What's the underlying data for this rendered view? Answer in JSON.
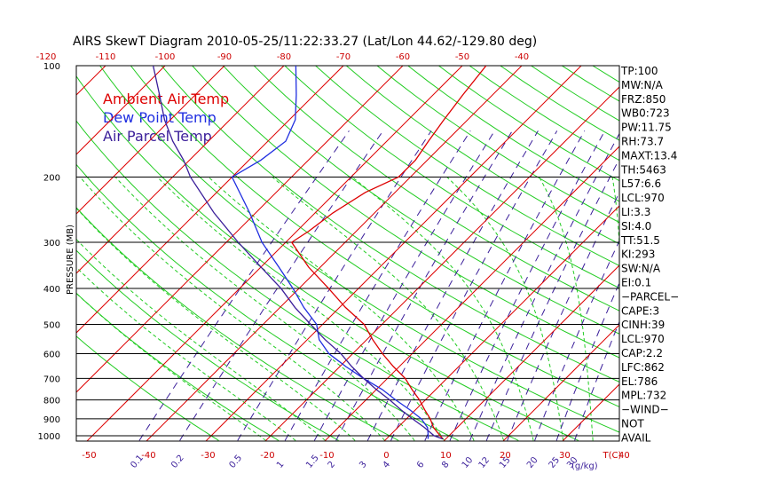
{
  "title": "AIRS SkewT Diagram 2010-05-25/11:22:33.27 (Lat/Lon 44.62/-129.80 deg)",
  "ylabel": "PRESSURE (MB)",
  "legend": [
    {
      "label": "Ambient Air Temp",
      "color": "#dd0000"
    },
    {
      "label": "Dew Point Temp",
      "color": "#1f2ee0"
    },
    {
      "label": "Air Parcel Temp",
      "color": "#3b1f9a"
    }
  ],
  "top_axis": {
    "labels": [
      "-120",
      "-110",
      "-100",
      "-90",
      "-80",
      "-70",
      "-60",
      "-50",
      "-40"
    ]
  },
  "bottom_axis": {
    "labels": [
      "-50",
      "-40",
      "-30",
      "-20",
      "-10",
      "0",
      "10",
      "20",
      "30",
      "40"
    ],
    "unit": "T(C)"
  },
  "mixing_ratio": {
    "labels": [
      "0.1",
      "0.2",
      "0.5",
      "1",
      "1.5",
      "2",
      "3",
      "4",
      "6",
      "8",
      "10",
      "12",
      "15",
      "20",
      "25",
      "30"
    ],
    "unit": "(g/kg)"
  },
  "indices": [
    "TP:100",
    "MW:N/A",
    "FRZ:850",
    "WB0:723",
    "PW:11.75",
    "RH:73.7",
    "MAXT:13.4",
    "TH:5463",
    "L57:6.6",
    "LCL:970",
    "LI:3.3",
    "SI:4.0",
    "TT:51.5",
    "KI:293",
    "SW:N/A",
    "EI:0.1",
    "−PARCEL−",
    "CAPE:3",
    "CINH:39",
    "LCL:970",
    "CAP:2.2",
    "LFC:862",
    "EL:786",
    "MPL:732",
    "−WIND−",
    "NOT",
    "AVAIL"
  ],
  "colors": {
    "isotherm": "#dd0000",
    "dry_adiabat": "#22cc22",
    "moist_adiabat": "#22cc22",
    "mixing_ratio": "#3b1f9a",
    "isobar": "#000000",
    "text": "#000000",
    "tick_text": "#cc0000",
    "mixing_text": "#3b1f9a"
  },
  "chart_data": {
    "type": "line",
    "title": "AIRS SkewT Diagram 2010-05-25/11:22:33.27 (Lat/Lon 44.62/-129.80 deg)",
    "ylabel": "PRESSURE (MB)",
    "pressure_levels": [
      100,
      200,
      300,
      400,
      500,
      600,
      700,
      800,
      900,
      1000
    ],
    "y_scale": "log",
    "ylim": [
      1020,
      100
    ],
    "xlim": [
      -55,
      50
    ],
    "skew_note": "isotherms skewed 45 degrees",
    "series": [
      {
        "name": "Ambient Air Temp",
        "points": [
          [
            1020,
            9.5
          ],
          [
            1000,
            8.5
          ],
          [
            950,
            6
          ],
          [
            900,
            4
          ],
          [
            850,
            1.5
          ],
          [
            800,
            -1
          ],
          [
            750,
            -4
          ],
          [
            700,
            -7
          ],
          [
            650,
            -11
          ],
          [
            600,
            -15
          ],
          [
            550,
            -19
          ],
          [
            500,
            -23
          ],
          [
            450,
            -29
          ],
          [
            400,
            -35
          ],
          [
            350,
            -42
          ],
          [
            300,
            -49
          ],
          [
            280,
            -48
          ],
          [
            250,
            -47
          ],
          [
            220,
            -45
          ],
          [
            200,
            -42
          ],
          [
            180,
            -42
          ],
          [
            160,
            -43
          ],
          [
            140,
            -44
          ],
          [
            120,
            -45
          ],
          [
            100,
            -46
          ]
        ]
      },
      {
        "name": "Dew Point Temp",
        "points": [
          [
            1020,
            7
          ],
          [
            1000,
            6.5
          ],
          [
            950,
            5
          ],
          [
            900,
            2.5
          ],
          [
            850,
            -1
          ],
          [
            800,
            -5
          ],
          [
            750,
            -9
          ],
          [
            700,
            -14
          ],
          [
            650,
            -19
          ],
          [
            600,
            -24
          ],
          [
            550,
            -28
          ],
          [
            500,
            -31
          ],
          [
            450,
            -36
          ],
          [
            400,
            -41
          ],
          [
            350,
            -47
          ],
          [
            300,
            -54
          ],
          [
            250,
            -61
          ],
          [
            200,
            -70
          ],
          [
            180,
            -68
          ],
          [
            160,
            -67
          ],
          [
            140,
            -69
          ],
          [
            120,
            -73
          ],
          [
            100,
            -78
          ]
        ]
      },
      {
        "name": "Air Parcel Temp",
        "points": [
          [
            1020,
            9.5
          ],
          [
            1000,
            7.5
          ],
          [
            950,
            4.5
          ],
          [
            900,
            1
          ],
          [
            850,
            -2.5
          ],
          [
            800,
            -6
          ],
          [
            750,
            -10
          ],
          [
            700,
            -14
          ],
          [
            650,
            -18
          ],
          [
            600,
            -22
          ],
          [
            550,
            -27
          ],
          [
            500,
            -32
          ],
          [
            450,
            -37.5
          ],
          [
            400,
            -43
          ],
          [
            350,
            -50
          ],
          [
            300,
            -58
          ],
          [
            250,
            -67
          ],
          [
            200,
            -77
          ],
          [
            180,
            -81
          ],
          [
            160,
            -86
          ],
          [
            140,
            -91
          ],
          [
            120,
            -96
          ],
          [
            100,
            -102
          ]
        ]
      }
    ]
  }
}
